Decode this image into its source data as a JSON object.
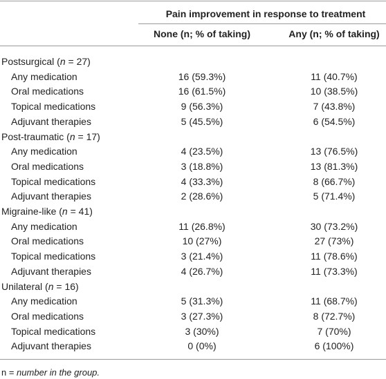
{
  "header": {
    "title": "Pain improvement in response to treatment",
    "columns": [
      "None (n; % of taking)",
      "Any (n; % of taking)"
    ]
  },
  "groups": [
    {
      "label": [
        "Postsurgical (",
        "n",
        " = 27)"
      ],
      "rows": [
        [
          "Any medication",
          "16 (59.3%)",
          "11 (40.7%)"
        ],
        [
          "Oral medications",
          "16 (61.5%)",
          "10 (38.5%)"
        ],
        [
          "Topical medications",
          "9 (56.3%)",
          "7 (43.8%)"
        ],
        [
          "Adjuvant therapies",
          "5 (45.5%)",
          "6 (54.5%)"
        ]
      ]
    },
    {
      "label": [
        "Post-traumatic (",
        "n",
        " = 17)"
      ],
      "rows": [
        [
          "Any medication",
          "4 (23.5%)",
          "13 (76.5%)"
        ],
        [
          "Oral medications",
          "3 (18.8%)",
          "13 (81.3%)"
        ],
        [
          "Topical medications",
          "4 (33.3%)",
          "8 (66.7%)"
        ],
        [
          "Adjuvant therapies",
          "2 (28.6%)",
          "5 (71.4%)"
        ]
      ]
    },
    {
      "label": [
        "Migraine-like (",
        "n",
        " = 41)"
      ],
      "rows": [
        [
          "Any medication",
          "11 (26.8%)",
          "30 (73.2%)"
        ],
        [
          "Oral medications",
          "10 (27%)",
          "27 (73%)"
        ],
        [
          "Topical medications",
          "3 (21.4%)",
          "11 (78.6%)"
        ],
        [
          "Adjuvant therapies",
          "4 (26.7%)",
          "11 (73.3%)"
        ]
      ]
    },
    {
      "label": [
        "Unilateral (",
        "n",
        " = 16)"
      ],
      "rows": [
        [
          "Any medication",
          "5 (31.3%)",
          "11 (68.7%)"
        ],
        [
          "Oral medications",
          "3 (27.3%)",
          "8 (72.7%)"
        ],
        [
          "Topical medications",
          "3 (30%)",
          "7 (70%)"
        ],
        [
          "Adjuvant therapies",
          "0 (0%)",
          "6 (100%)"
        ]
      ]
    }
  ],
  "footnote": [
    "n = ",
    "number in the group."
  ]
}
